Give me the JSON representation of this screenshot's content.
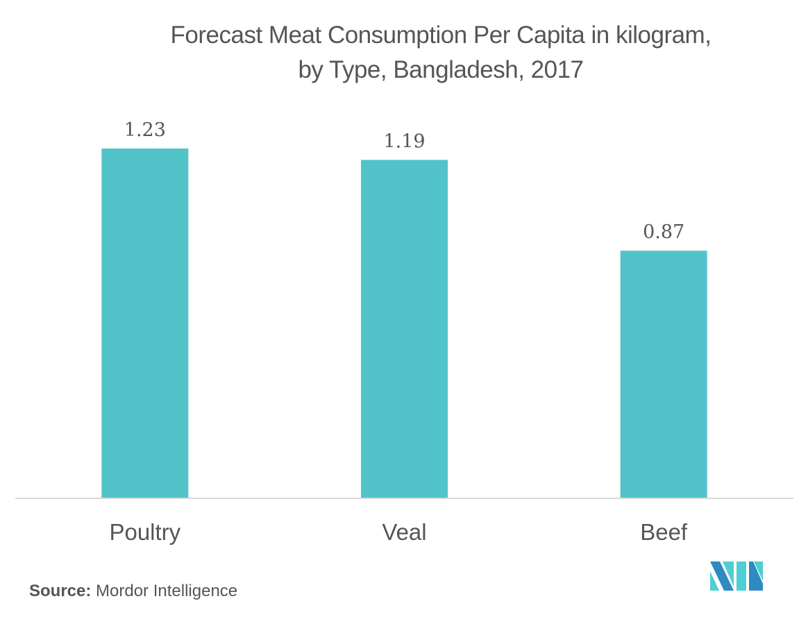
{
  "chart_data": {
    "type": "bar",
    "title": "Forecast Meat Consumption Per Capita in kilogram, by Type, Bangladesh, 2017",
    "title_lines": [
      "Forecast Meat Consumption Per Capita in kilogram,",
      "by Type, Bangladesh, 2017"
    ],
    "categories": [
      "Poultry",
      "Veal",
      "Beef"
    ],
    "values": [
      1.23,
      1.19,
      0.87
    ],
    "data_labels": [
      "1.23",
      "1.19",
      "0.87"
    ],
    "xlabel": "",
    "ylabel": "",
    "ylim": [
      0,
      1.23
    ],
    "grid": false,
    "legend": "none",
    "bar_color": "#52c3c9",
    "axis_color": "#d9d9d9"
  },
  "footer": {
    "source_label": "Source:",
    "source_text": " Mordor Intelligence"
  },
  "logo": {
    "name": "mordor-intelligence-logo",
    "colors": [
      "#2e8bc0",
      "#4ecfd1"
    ]
  }
}
